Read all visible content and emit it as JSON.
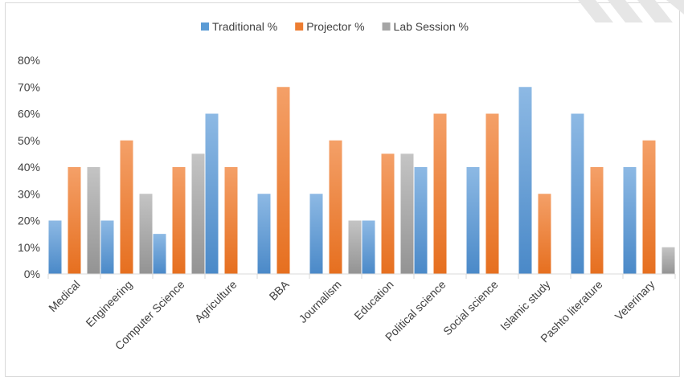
{
  "chart_data": {
    "type": "bar",
    "title": "",
    "xlabel": "",
    "ylabel": "",
    "categories": [
      "Medical",
      "Engineering",
      "Computer Science",
      "Agriculture",
      "BBA",
      "Journalism",
      "Education",
      "Political science",
      "Social science",
      "Islamic study",
      "Pashto literature",
      "Veterinary"
    ],
    "series": [
      {
        "name": "Traditional %",
        "color": "#5b9bd5",
        "values": [
          20,
          20,
          15,
          60,
          30,
          30,
          20,
          40,
          40,
          70,
          60,
          40
        ]
      },
      {
        "name": "Projector %",
        "color": "#ed7d31",
        "values": [
          40,
          50,
          40,
          40,
          70,
          50,
          45,
          60,
          60,
          30,
          40,
          50
        ]
      },
      {
        "name": "Lab Session %",
        "color": "#a5a5a5",
        "values": [
          40,
          30,
          45,
          0,
          0,
          20,
          45,
          0,
          0,
          0,
          0,
          10
        ]
      }
    ],
    "ylim": [
      0,
      80
    ],
    "yticks": [
      0,
      10,
      20,
      30,
      40,
      50,
      60,
      70,
      80
    ],
    "ytick_labels": [
      "0%",
      "10%",
      "20%",
      "30%",
      "40%",
      "50%",
      "60%",
      "70%",
      "80%"
    ],
    "grid": false,
    "legend_position": "top"
  }
}
